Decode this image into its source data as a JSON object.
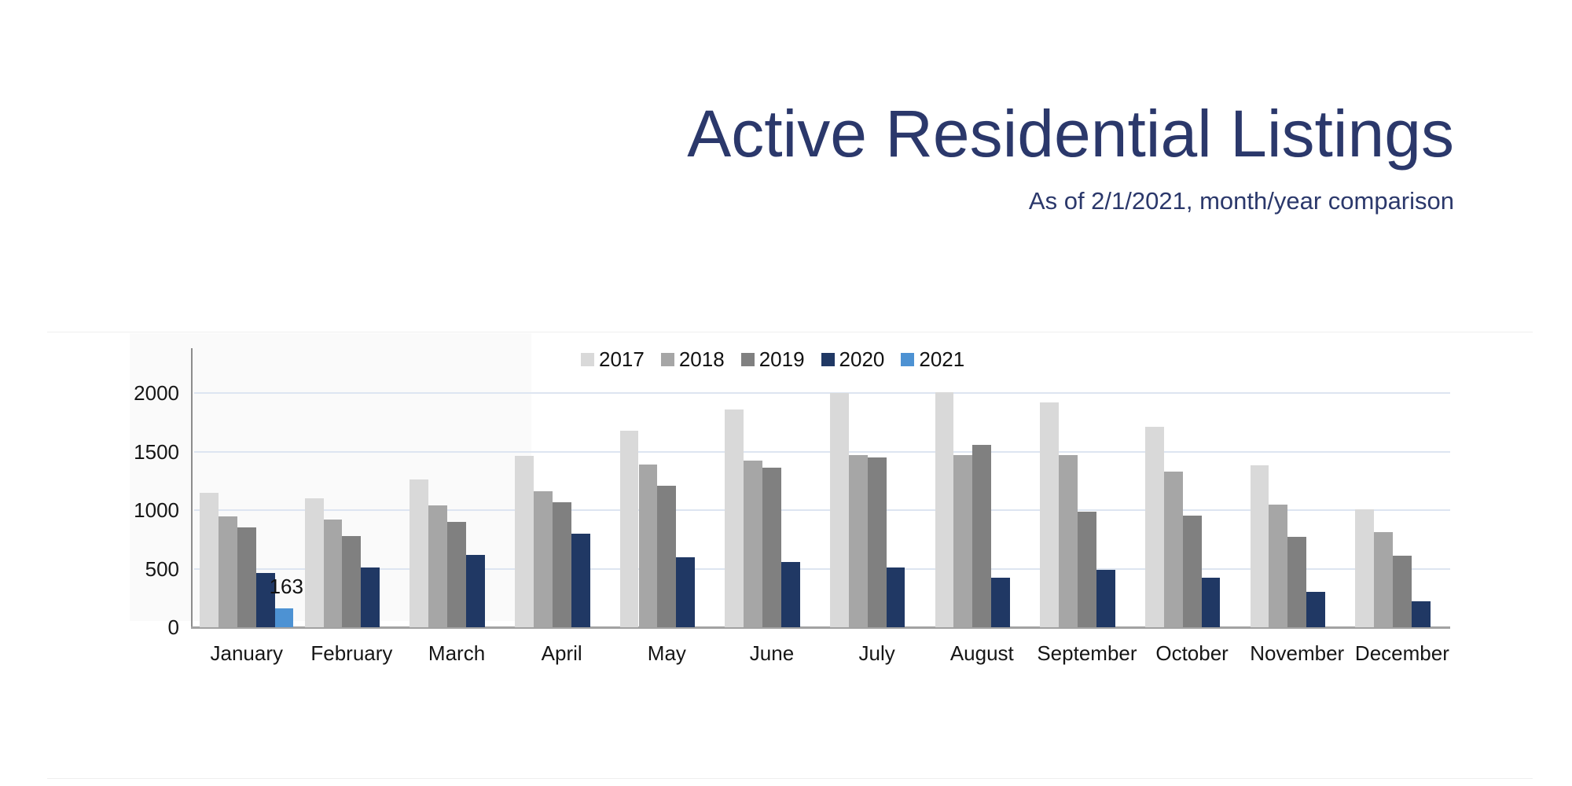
{
  "header": {
    "title": "Active Residential Listings",
    "subtitle": "As of 2/1/2021, month/year comparison",
    "title_color": "#2b386b"
  },
  "chart_data": {
    "type": "bar",
    "title": "Active Residential Listings",
    "subtitle": "As of 2/1/2021, month/year comparison",
    "categories": [
      "January",
      "February",
      "March",
      "April",
      "May",
      "June",
      "July",
      "August",
      "September",
      "October",
      "November",
      "December"
    ],
    "series": [
      {
        "name": "2017",
        "color": "#d9d9d9",
        "values": [
          1150,
          1100,
          1260,
          1460,
          1680,
          1860,
          2000,
          2010,
          1920,
          1710,
          1380,
          1010
        ]
      },
      {
        "name": "2018",
        "color": "#a6a6a6",
        "values": [
          945,
          920,
          1040,
          1160,
          1390,
          1420,
          1470,
          1470,
          1470,
          1330,
          1050,
          810
        ]
      },
      {
        "name": "2019",
        "color": "#808080",
        "values": [
          855,
          780,
          900,
          1070,
          1210,
          1360,
          1450,
          1560,
          990,
          950,
          770,
          610
        ]
      },
      {
        "name": "2020",
        "color": "#203864",
        "values": [
          465,
          510,
          620,
          800,
          600,
          560,
          510,
          420,
          490,
          420,
          300,
          220
        ]
      },
      {
        "name": "2021",
        "color": "#4d92d3",
        "values": [
          163,
          null,
          null,
          null,
          null,
          null,
          null,
          null,
          null,
          null,
          null,
          null
        ]
      }
    ],
    "annotations": [
      {
        "text": "163",
        "series": "2021",
        "category": "January"
      }
    ],
    "yticks": [
      0,
      500,
      1000,
      1500,
      2000
    ],
    "ylim": [
      0,
      2400
    ],
    "xlabel": "",
    "ylabel": "",
    "grid": true,
    "legend_position": "top",
    "gridline_color": "#dde5f1",
    "axis_line_color": "#8c8c8c"
  }
}
